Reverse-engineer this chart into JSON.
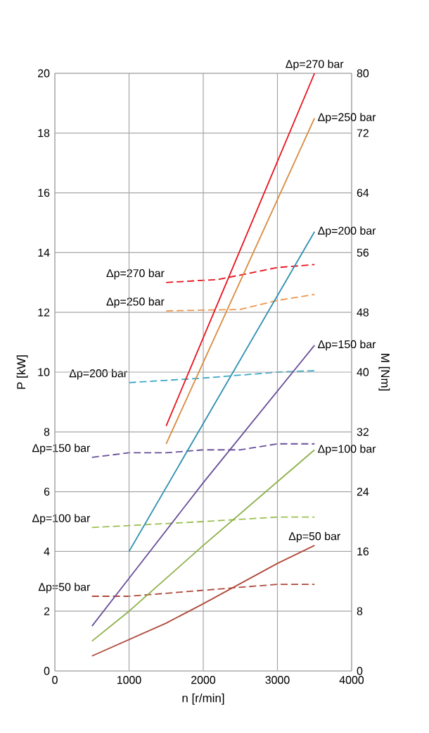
{
  "chart_data": {
    "type": "line",
    "xlabel": "n [r/min]",
    "ylabel": "P [kW]",
    "y2label": "M [Nm]",
    "xlim": [
      0,
      4000
    ],
    "xticks": [
      0,
      1000,
      2000,
      3000,
      4000
    ],
    "ylim": [
      0,
      20
    ],
    "yticks": [
      0,
      2,
      4,
      6,
      8,
      10,
      12,
      14,
      16,
      18,
      20
    ],
    "y2lim": [
      0,
      80
    ],
    "y2ticks": [
      0,
      8,
      16,
      24,
      32,
      40,
      48,
      56,
      64,
      72,
      80
    ],
    "grid": true,
    "marker": "none",
    "series": [
      {
        "name": "Δp=270 bar",
        "color": "#e8101a",
        "x": [
          1500,
          3500
        ],
        "values": [
          8.2,
          20
        ]
      },
      {
        "name": "Δp=250 bar",
        "color": "#d98a3d",
        "x": [
          1500,
          3500
        ],
        "values": [
          7.6,
          18.5
        ]
      },
      {
        "name": "Δp=200 bar",
        "color": "#2e8fb0",
        "x": [
          1000,
          3500
        ],
        "values": [
          4.0,
          14.7
        ]
      },
      {
        "name": "Δp=150 bar",
        "color": "#6a4f9a",
        "x": [
          500,
          1000,
          2000,
          3500
        ],
        "values": [
          1.5,
          3.1,
          6.3,
          10.9
        ]
      },
      {
        "name": "Δp=100 bar",
        "color": "#8db04a",
        "x": [
          500,
          1000,
          2000,
          3500
        ],
        "values": [
          1.0,
          2.0,
          4.2,
          7.4
        ]
      },
      {
        "name": "Δp=50 bar",
        "color": "#b04a3c",
        "x": [
          500,
          1000,
          1500,
          2000,
          3000,
          3500
        ],
        "values": [
          0.5,
          1.05,
          1.6,
          2.25,
          3.6,
          4.2
        ]
      },
      {
        "name": "Δp=270 bar",
        "color": "#e8101a",
        "axis": "y2",
        "line_style": "dashed",
        "x": [
          1500,
          2200,
          3000,
          3500
        ],
        "values": [
          52,
          52.4,
          54,
          54.4
        ]
      },
      {
        "name": "Δp=250 bar",
        "color": "#f0964a",
        "axis": "y2",
        "line_style": "dashed",
        "x": [
          1500,
          2500,
          3000,
          3500
        ],
        "values": [
          48.2,
          48.4,
          49.6,
          50.4
        ]
      },
      {
        "name": "Δp=200 bar",
        "color": "#3aa8c8",
        "axis": "y2",
        "line_style": "dashed",
        "x": [
          1000,
          2000,
          3000,
          3500
        ],
        "values": [
          38.6,
          39.2,
          40,
          40.2
        ]
      },
      {
        "name": "Δp=150 bar",
        "color": "#6a4f9a",
        "axis": "y2",
        "line_style": "dashed",
        "x": [
          500,
          1000,
          1500,
          2000,
          2500,
          3000,
          3500
        ],
        "values": [
          28.6,
          29.2,
          29.2,
          29.6,
          29.6,
          30.4,
          30.4
        ]
      },
      {
        "name": "Δp=100 bar",
        "color": "#9cc050",
        "axis": "y2",
        "line_style": "dashed",
        "x": [
          500,
          2000,
          3000,
          3500
        ],
        "values": [
          19.2,
          20,
          20.6,
          20.6
        ]
      },
      {
        "name": "Δp=50 bar",
        "color": "#b04a3c",
        "axis": "y2",
        "line_style": "dashed",
        "x": [
          500,
          1000,
          2000,
          3000,
          3500
        ],
        "values": [
          10,
          10,
          10.8,
          11.6,
          11.6
        ]
      }
    ]
  }
}
